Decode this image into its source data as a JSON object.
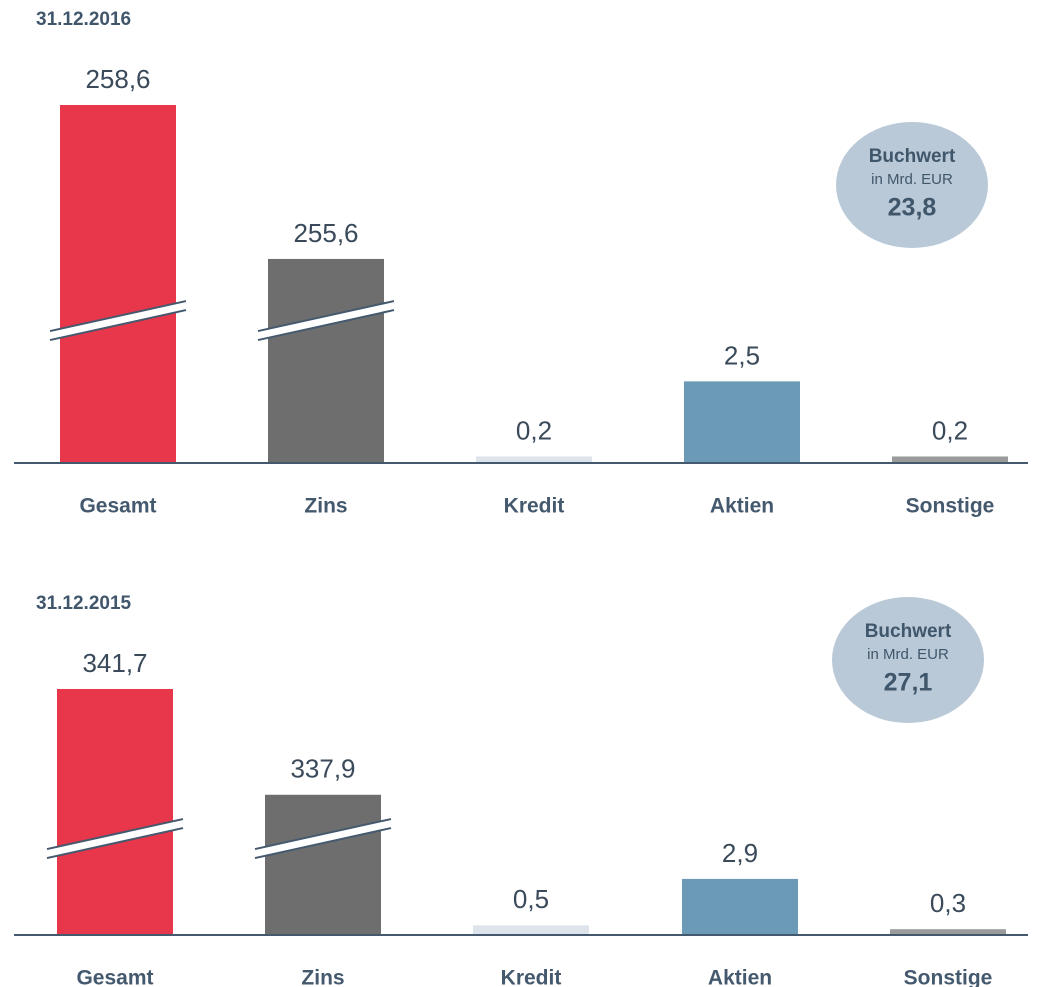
{
  "chart_data": [
    {
      "type": "bar",
      "title": "31.12.2016",
      "categories": [
        "Gesamt",
        "Zins",
        "Kredit",
        "Aktien",
        "Sonstige"
      ],
      "values": [
        258.6,
        255.6,
        0.2,
        2.5,
        0.2
      ],
      "value_labels": [
        "258,6",
        "255,6",
        "0,2",
        "2,5",
        "0,2"
      ],
      "colors": [
        "#e8364a",
        "#6e6e6e",
        "#dde4ec",
        "#6a9ab5",
        "#9a9a9a"
      ],
      "annotation": {
        "title": "Buchwert",
        "subtitle": "in Mrd. EUR",
        "value": "23,8"
      }
    },
    {
      "type": "bar",
      "title": "31.12.2015",
      "categories": [
        "Gesamt",
        "Zins",
        "Kredit",
        "Aktien",
        "Sonstige"
      ],
      "values": [
        341.7,
        337.9,
        0.5,
        2.9,
        0.3
      ],
      "value_labels": [
        "341,7",
        "337,9",
        "0,5",
        "2,9",
        "0,3"
      ],
      "colors": [
        "#e8364a",
        "#6e6e6e",
        "#dde4ec",
        "#6a9ab5",
        "#9a9a9a"
      ],
      "annotation": {
        "title": "Buchwert",
        "subtitle": "in Mrd. EUR",
        "value": "27,1"
      }
    }
  ]
}
